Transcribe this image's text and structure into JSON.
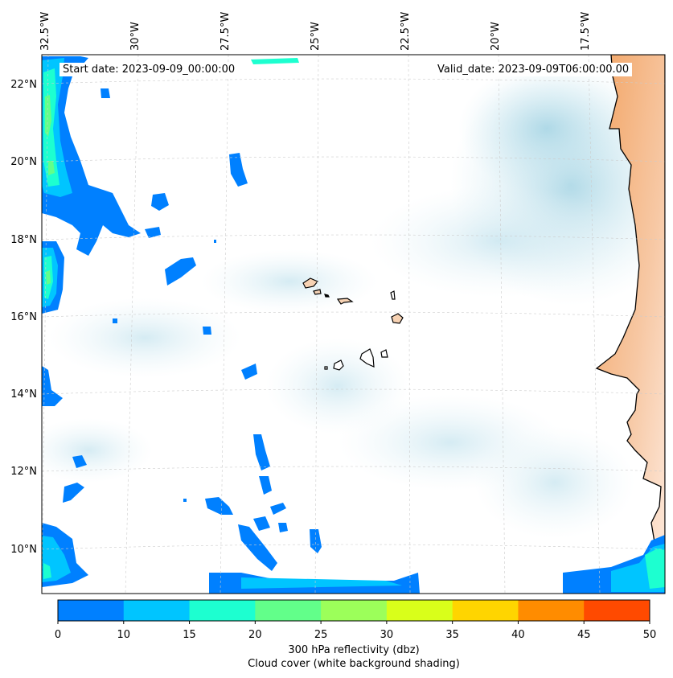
{
  "map": {
    "start_date": "Start date: 2023-09-09_00:00:00",
    "valid_date": "Valid_date: 2023-09-09T06:00:00.00",
    "lon_labels": [
      "32.5°W",
      "30°W",
      "27.5°W",
      "25°W",
      "22.5°W",
      "20°W",
      "17.5°W"
    ],
    "lat_labels": [
      "22°N",
      "20°N",
      "18°N",
      "16°N",
      "14°N",
      "12°N",
      "10°N"
    ],
    "land_color": "#f4a460",
    "coast_color": "#000000",
    "cloud_color": "#add8e6",
    "gridline_color": "#cccccc"
  },
  "colorbar": {
    "ticks": [
      "0",
      "10",
      "15",
      "20",
      "25",
      "30",
      "35",
      "40",
      "45",
      "50"
    ],
    "colors": [
      "#0080ff",
      "#00c5ff",
      "#1dffd0",
      "#62ff8a",
      "#9cff5a",
      "#d9ff1a",
      "#ffd500",
      "#ff8c00",
      "#ff4a00"
    ],
    "label": "300 hPa reflectivity (dbz)",
    "sublabel": "Cloud cover (white background shading)"
  }
}
